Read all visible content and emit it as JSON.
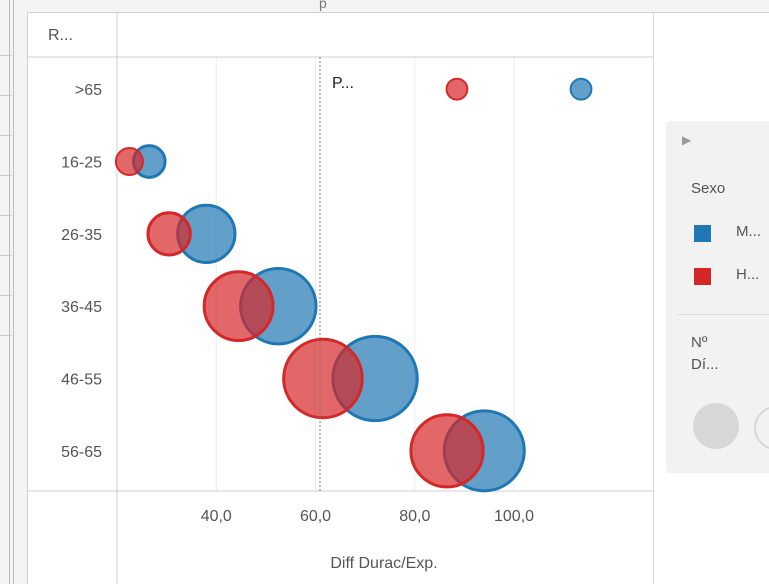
{
  "header": {
    "fragment": "p"
  },
  "legend": {
    "title": "Sexo",
    "items": [
      {
        "label": "M...",
        "color": "#1f77b4"
      },
      {
        "label": "H...",
        "color": "#d62728"
      }
    ],
    "size_title_line1": "Nº",
    "size_title_line2": "Dí..."
  },
  "chart_data": {
    "type": "scatter",
    "subtype": "bubble",
    "row_header": "R...",
    "rows": [
      ">65",
      "16-25",
      "26-35",
      "36-45",
      "46-55",
      "56-65"
    ],
    "xlabel": "Diff Durac/Exp.",
    "xlim": [
      20.0,
      128.0
    ],
    "x_ticks": [
      "40,0",
      "60,0",
      "80,0",
      "100,0"
    ],
    "reference_line": {
      "x": 60.9,
      "label": "P..."
    },
    "series": [
      {
        "name": "M...",
        "color": "#1f77b4",
        "points": [
          {
            "row": ">65",
            "x": 113.5,
            "size": 1
          },
          {
            "row": "16-25",
            "x": 26.5,
            "size": 3
          },
          {
            "row": "26-35",
            "x": 38.0,
            "size": 12
          },
          {
            "row": "36-45",
            "x": 52.5,
            "size": 22
          },
          {
            "row": "46-55",
            "x": 72.0,
            "size": 28
          },
          {
            "row": "56-65",
            "x": 94.0,
            "size": 25
          }
        ]
      },
      {
        "name": "H...",
        "color": "#d62728",
        "points": [
          {
            "row": ">65",
            "x": 88.5,
            "size": 1
          },
          {
            "row": "16-25",
            "x": 22.5,
            "size": 2
          },
          {
            "row": "26-35",
            "x": 30.5,
            "size": 6
          },
          {
            "row": "36-45",
            "x": 44.5,
            "size": 18
          },
          {
            "row": "46-55",
            "x": 61.5,
            "size": 24
          },
          {
            "row": "56-65",
            "x": 86.5,
            "size": 20
          }
        ]
      }
    ],
    "grid": true,
    "legend_position": "right"
  }
}
